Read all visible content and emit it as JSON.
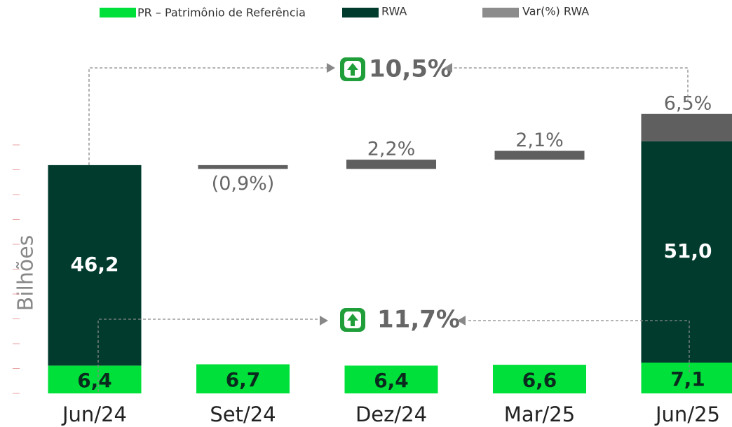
{
  "chart_data": {
    "type": "bar",
    "y_label": "Bilhões",
    "categories": [
      "Jun/24",
      "Set/24",
      "Dez/24",
      "Mar/25",
      "Jun/25"
    ],
    "series": [
      {
        "name": "PR – Patrimônio de Referência",
        "color": "#00e03a",
        "values": [
          6.4,
          6.7,
          6.4,
          6.6,
          7.1
        ],
        "value_labels": [
          "6,4",
          "6,7",
          "6,4",
          "6,6",
          "7,1"
        ]
      },
      {
        "name": "RWA",
        "color": "#003b2e",
        "values": [
          46.2,
          null,
          null,
          null,
          51.0
        ],
        "value_labels": [
          "46,2",
          null,
          null,
          null,
          "51,0"
        ]
      },
      {
        "name": "Var(%) RWA",
        "color": "#5f5f5f",
        "values": [
          null,
          -0.9,
          2.2,
          2.1,
          6.5
        ],
        "value_labels": [
          null,
          "(0,9%)",
          "2,2%",
          "2,1%",
          "6,5%"
        ]
      }
    ],
    "annotations": [
      "10,5%",
      "11,7%"
    ]
  }
}
